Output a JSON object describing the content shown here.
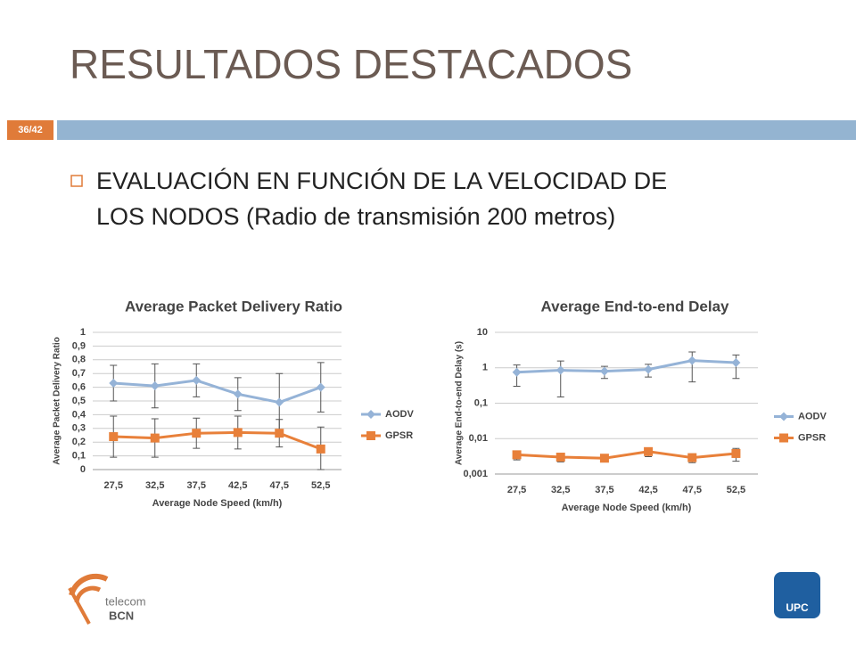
{
  "slide": {
    "title": "RESULTADOS DESTACADOS",
    "page": "36/42",
    "bullet": [
      "EVALUACIÓN EN FUNCIÓN DE LA VELOCIDAD DE",
      "LOS NODOS (Radio de transmisión 200 metros)"
    ]
  },
  "logos": {
    "left": [
      "telecom",
      "BCN"
    ],
    "right": "UPC"
  },
  "chart_data": [
    {
      "type": "line",
      "title": "Average Packet Delivery Ratio",
      "x_label": "Average Node Speed (km/h)",
      "y_label": "Average Packet Delivery Ratio",
      "categories": [
        "27,5",
        "32,5",
        "37,5",
        "42,5",
        "47,5",
        "52,5"
      ],
      "series": [
        {
          "name": "AODV",
          "color": "#95b3d7",
          "marker": "diamond",
          "values": [
            0.63,
            0.61,
            0.65,
            0.55,
            0.49,
            0.6
          ],
          "errors": [
            0.13,
            0.16,
            0.12,
            0.12,
            0.21,
            0.18
          ]
        },
        {
          "name": "GPSR",
          "color": "#e8803a",
          "marker": "square",
          "values": [
            0.24,
            0.23,
            0.265,
            0.27,
            0.265,
            0.15
          ],
          "errors": [
            0.15,
            0.14,
            0.11,
            0.12,
            0.1,
            0.16
          ]
        }
      ],
      "ylim": [
        0,
        1
      ],
      "log": false,
      "grid": true,
      "legend": "right",
      "yticks": [
        0,
        {
          "value": 0.1,
          "label": "0,1"
        },
        {
          "value": 0.2,
          "label": "0,2"
        },
        {
          "value": 0.3,
          "label": "0,3"
        },
        {
          "value": 0.4,
          "label": "0,4"
        },
        {
          "value": 0.5,
          "label": "0,5"
        },
        {
          "value": 0.6,
          "label": "0,6"
        },
        {
          "value": 0.7,
          "label": "0,7"
        },
        {
          "value": 0.8,
          "label": "0,8"
        },
        {
          "value": 0.9,
          "label": "0,9"
        },
        1
      ]
    },
    {
      "type": "line",
      "title": "Average End-to-end Delay",
      "x_label": "Average Node Speed (km/h)",
      "y_label": "Average End-to-end Delay (s)",
      "categories": [
        "27,5",
        "32,5",
        "37,5",
        "42,5",
        "47,5",
        "52,5"
      ],
      "series": [
        {
          "name": "AODV",
          "color": "#95b3d7",
          "marker": "diamond",
          "values": [
            0.75,
            0.85,
            0.8,
            0.9,
            1.6,
            1.4
          ],
          "errors": [
            0.45,
            0.7,
            0.3,
            0.35,
            1.2,
            0.9
          ]
        },
        {
          "name": "GPSR",
          "color": "#e8803a",
          "marker": "square",
          "values": [
            0.0035,
            0.003,
            0.0028,
            0.0043,
            0.0029,
            0.0038
          ],
          "errors": [
            0.001,
            0.0008,
            0.0005,
            0.0012,
            0.0008,
            0.0015
          ]
        }
      ],
      "ylim": [
        0.001,
        10
      ],
      "log": true,
      "grid": true,
      "legend": "right",
      "yticks": [
        {
          "value": 0.001,
          "label": "0,001"
        },
        {
          "value": 0.01,
          "label": "0,01"
        },
        {
          "value": 0.1,
          "label": "0,1"
        },
        1,
        10
      ]
    }
  ]
}
